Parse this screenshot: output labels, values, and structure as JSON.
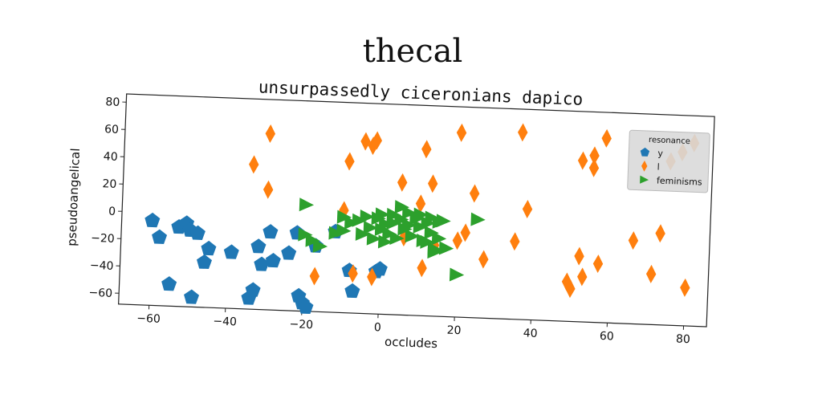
{
  "figure_title": "thecal",
  "chart_data": {
    "type": "scatter",
    "title": "unsurpassedly ciceronians dapico",
    "xlabel": "occludes",
    "ylabel": "pseudoangelical",
    "xlim": [
      -68,
      86
    ],
    "ylim": [
      -68,
      86
    ],
    "xticks": [
      -60,
      -40,
      -20,
      0,
      20,
      40,
      60,
      80
    ],
    "yticks": [
      -60,
      -40,
      -20,
      0,
      20,
      40,
      60,
      80
    ],
    "grid": false,
    "legend": {
      "title": "resonance",
      "placement": "top-right"
    },
    "series": [
      {
        "name": "y",
        "marker": "pentagon",
        "color": "#1f77b4",
        "points": [
          [
            -60,
            -6
          ],
          [
            -58,
            -18
          ],
          [
            -55,
            -52
          ],
          [
            -53,
            -10
          ],
          [
            -51,
            -7
          ],
          [
            -50,
            -12
          ],
          [
            -48,
            -14
          ],
          [
            -49,
            -61
          ],
          [
            -46,
            -35
          ],
          [
            -45,
            -25
          ],
          [
            -39,
            -27
          ],
          [
            -34,
            -60
          ],
          [
            -33,
            -54
          ],
          [
            -32,
            -22
          ],
          [
            -31,
            -35
          ],
          [
            -29,
            -11
          ],
          [
            -28,
            -32
          ],
          [
            -24,
            -26
          ],
          [
            -22,
            -11
          ],
          [
            -21,
            -57
          ],
          [
            -20,
            -62
          ],
          [
            -19,
            -65
          ],
          [
            -17,
            -20
          ],
          [
            -12,
            -9
          ],
          [
            -8,
            -37
          ],
          [
            -7,
            -52
          ],
          [
            -1,
            -37
          ],
          [
            0,
            -35
          ]
        ]
      },
      {
        "name": "l",
        "marker": "thin_diamond",
        "color": "#ff7f0e",
        "points": [
          [
            -34,
            38
          ],
          [
            -30,
            61
          ],
          [
            -30,
            20
          ],
          [
            -17,
            -42
          ],
          [
            -9,
            43
          ],
          [
            -10,
            7
          ],
          [
            -7,
            -39
          ],
          [
            -5,
            58
          ],
          [
            -3,
            55
          ],
          [
            -2,
            59
          ],
          [
            -2,
            -41
          ],
          [
            5,
            29
          ],
          [
            6,
            -11
          ],
          [
            10,
            14
          ],
          [
            11,
            54
          ],
          [
            11,
            -33
          ],
          [
            13,
            29
          ],
          [
            14,
            -16
          ],
          [
            20,
            -12
          ],
          [
            20,
            67
          ],
          [
            22,
            -6
          ],
          [
            24,
            23
          ],
          [
            27,
            -25
          ],
          [
            35,
            -11
          ],
          [
            36,
            69
          ],
          [
            38,
            13
          ],
          [
            49,
            -39
          ],
          [
            50,
            -44
          ],
          [
            52,
            50
          ],
          [
            52,
            -20
          ],
          [
            53,
            -35
          ],
          [
            55,
            54
          ],
          [
            55,
            45
          ],
          [
            57,
            -25
          ],
          [
            58,
            67
          ],
          [
            66,
            -7
          ],
          [
            71,
            -31
          ],
          [
            73,
            -1
          ],
          [
            75,
            52
          ],
          [
            78,
            59
          ],
          [
            80,
            -40
          ],
          [
            81,
            66
          ]
        ]
      },
      {
        "name": "feminisms",
        "marker": "triangle_right",
        "color": "#2ca02c",
        "points": [
          [
            -20,
            10
          ],
          [
            -20,
            -12
          ],
          [
            -18,
            -16
          ],
          [
            -16,
            -20
          ],
          [
            -12,
            -10
          ],
          [
            -10,
            2
          ],
          [
            -10,
            -8
          ],
          [
            -8,
            -2
          ],
          [
            -6,
            0
          ],
          [
            -5,
            -10
          ],
          [
            -4,
            3
          ],
          [
            -3,
            -5
          ],
          [
            -2,
            -13
          ],
          [
            -1,
            2
          ],
          [
            0,
            -6
          ],
          [
            0,
            5
          ],
          [
            1,
            -15
          ],
          [
            1,
            -2
          ],
          [
            2,
            -9
          ],
          [
            3,
            5
          ],
          [
            3,
            -1
          ],
          [
            4,
            -12
          ],
          [
            5,
            11
          ],
          [
            5,
            2
          ],
          [
            6,
            -5
          ],
          [
            7,
            7
          ],
          [
            7,
            -2
          ],
          [
            8,
            -10
          ],
          [
            9,
            3
          ],
          [
            10,
            6
          ],
          [
            10,
            -3
          ],
          [
            11,
            -13
          ],
          [
            12,
            0
          ],
          [
            12,
            -14
          ],
          [
            13,
            4
          ],
          [
            13,
            -7
          ],
          [
            14,
            -21
          ],
          [
            14,
            -19
          ],
          [
            15,
            -11
          ],
          [
            15,
            1
          ],
          [
            16,
            2
          ],
          [
            17,
            -18
          ],
          [
            20,
            -37
          ],
          [
            25,
            4
          ]
        ]
      }
    ]
  }
}
